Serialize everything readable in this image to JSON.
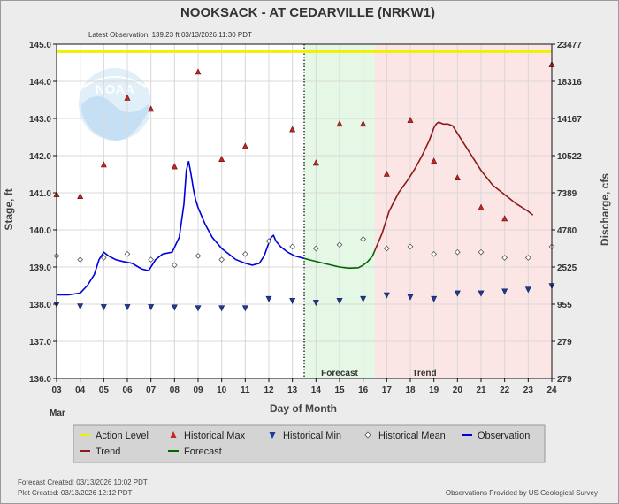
{
  "chart_data": {
    "type": "line",
    "title": "NOOKSACK - AT CEDARVILLE  (NRKW1)",
    "subtitle": "Latest Observation: 139.23 ft 03/13/2026 11:30 PDT",
    "xlabel": "Day of Month",
    "month_label": "Mar",
    "ylabel": "Stage, ft",
    "y2label": "Discharge, cfs",
    "xlim": [
      3,
      24
    ],
    "ylim": [
      136,
      145
    ],
    "x_ticks": [
      "03",
      "04",
      "05",
      "06",
      "07",
      "08",
      "09",
      "10",
      "11",
      "12",
      "13",
      "14",
      "15",
      "16",
      "17",
      "18",
      "19",
      "20",
      "21",
      "22",
      "23",
      "24"
    ],
    "y_ticks": [
      "136.0",
      "137.0",
      "138.0",
      "139.0",
      "140.0",
      "141.0",
      "142.0",
      "143.0",
      "144.0",
      "145.0"
    ],
    "y2_ticks": [
      {
        "stage": 136,
        "label": "279"
      },
      {
        "stage": 137,
        "label": "279"
      },
      {
        "stage": 138,
        "label": "955"
      },
      {
        "stage": 139,
        "label": "2525"
      },
      {
        "stage": 140,
        "label": "4780"
      },
      {
        "stage": 141,
        "label": "7389"
      },
      {
        "stage": 142,
        "label": "10522"
      },
      {
        "stage": 143,
        "label": "14167"
      },
      {
        "stage": 144,
        "label": "18316"
      },
      {
        "stage": 145,
        "label": "23477"
      }
    ],
    "action_level": 144.8,
    "latest_obs_day": 13.5,
    "forecast_region": [
      13.5,
      16.5
    ],
    "trend_region": [
      16.5,
      24
    ],
    "region_labels": {
      "forecast": "Forecast",
      "trend": "Trend"
    },
    "colors": {
      "action": "#f0f000",
      "observation": "#0000dd",
      "forecast": "#006600",
      "trend": "#8b1a1a",
      "hist_max": "#cc2222",
      "hist_min": "#1f3a9a",
      "forecast_bg": "#e5f7e5",
      "trend_bg": "#fce5e5"
    },
    "series": [
      {
        "name": "Observation",
        "x": [
          3.0,
          3.5,
          4.0,
          4.3,
          4.6,
          4.8,
          5.0,
          5.2,
          5.5,
          5.8,
          6.2,
          6.6,
          6.9,
          7.2,
          7.5,
          7.9,
          8.2,
          8.4,
          8.5,
          8.6,
          8.7,
          8.8,
          8.9,
          9.0,
          9.3,
          9.6,
          10.0,
          10.3,
          10.6,
          11.0,
          11.3,
          11.6,
          11.8,
          12.0,
          12.1,
          12.2,
          12.3,
          12.5,
          12.8,
          13.1,
          13.5
        ],
        "y": [
          138.25,
          138.25,
          138.3,
          138.5,
          138.8,
          139.2,
          139.4,
          139.3,
          139.2,
          139.15,
          139.1,
          138.95,
          138.9,
          139.2,
          139.35,
          139.4,
          139.8,
          140.7,
          141.6,
          141.85,
          141.5,
          141.1,
          140.8,
          140.6,
          140.15,
          139.8,
          139.5,
          139.35,
          139.2,
          139.1,
          139.05,
          139.1,
          139.3,
          139.65,
          139.8,
          139.85,
          139.7,
          139.55,
          139.4,
          139.3,
          139.23
        ]
      },
      {
        "name": "Forecast",
        "x": [
          13.5,
          13.8,
          14.2,
          14.6,
          15.0,
          15.4,
          15.8,
          16.0,
          16.2,
          16.4,
          16.5
        ],
        "y": [
          139.23,
          139.18,
          139.12,
          139.06,
          139.0,
          138.97,
          138.98,
          139.05,
          139.15,
          139.3,
          139.45
        ]
      },
      {
        "name": "Trend",
        "x": [
          16.5,
          16.8,
          17.1,
          17.5,
          17.9,
          18.2,
          18.5,
          18.8,
          19.0,
          19.1,
          19.2,
          19.4,
          19.6,
          19.8,
          20.0,
          20.3,
          20.7,
          21.0,
          21.5,
          22.0,
          22.5,
          23.0,
          23.2
        ],
        "y": [
          139.45,
          139.9,
          140.5,
          141.0,
          141.35,
          141.65,
          142.0,
          142.4,
          142.75,
          142.85,
          142.9,
          142.85,
          142.85,
          142.8,
          142.6,
          142.3,
          141.9,
          141.6,
          141.2,
          140.95,
          140.7,
          140.5,
          140.4
        ]
      }
    ],
    "hist_max": {
      "x": [
        3,
        4,
        5,
        6,
        7,
        8,
        9,
        10,
        11,
        13,
        14,
        15,
        16,
        17,
        18,
        19,
        20,
        21,
        22,
        24
      ],
      "y": [
        140.95,
        140.9,
        141.75,
        143.55,
        143.25,
        141.7,
        144.25,
        141.9,
        142.25,
        142.7,
        141.8,
        142.85,
        142.85,
        141.5,
        142.95,
        141.85,
        141.4,
        140.6,
        140.3,
        144.45
      ]
    },
    "hist_min": {
      "x": [
        3,
        4,
        5,
        6,
        7,
        8,
        9,
        10,
        11,
        12,
        13,
        14,
        15,
        16,
        17,
        18,
        19,
        20,
        21,
        22,
        23,
        24
      ],
      "y": [
        138.0,
        137.95,
        137.93,
        137.93,
        137.93,
        137.92,
        137.9,
        137.9,
        137.9,
        138.15,
        138.1,
        138.05,
        138.1,
        138.15,
        138.25,
        138.2,
        138.15,
        138.3,
        138.3,
        138.35,
        138.4,
        138.5
      ]
    },
    "hist_mean": {
      "x": [
        3,
        4,
        5,
        6,
        7,
        8,
        9,
        10,
        11,
        12,
        13,
        14,
        15,
        16,
        17,
        18,
        19,
        20,
        21,
        22,
        23,
        24
      ],
      "y": [
        139.3,
        139.2,
        139.25,
        139.35,
        139.2,
        139.05,
        139.3,
        139.2,
        139.35,
        139.7,
        139.55,
        139.5,
        139.6,
        139.75,
        139.5,
        139.55,
        139.35,
        139.4,
        139.4,
        139.25,
        139.25,
        139.55
      ]
    },
    "legend": [
      "Action Level",
      "Historical Max",
      "Historical Min",
      "Historical Mean",
      "Observation",
      "Trend",
      "Forecast"
    ],
    "grid": true,
    "logo_text": "NOAA"
  },
  "footer": {
    "forecast_created": "Forecast Created: 03/13/2026 10:02 PDT",
    "plot_created": "Plot Created: 03/13/2026 12:12 PDT",
    "provided_by": "Observations Provided by US Geological Survey"
  }
}
